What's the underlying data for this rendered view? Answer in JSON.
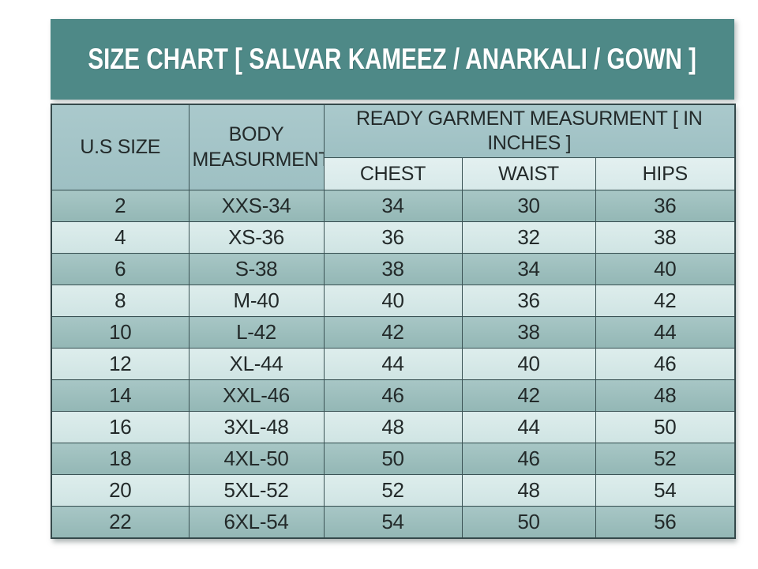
{
  "title": "SIZE CHART [ SALVAR KAMEEZ / ANARKALI / GOWN ]",
  "table_header": {
    "us_size": "U.S SIZE",
    "body_measurement": "BODY MEASURMENT",
    "ready_garment": "READY GARMENT MEASURMENT [ IN INCHES ]",
    "chest": "CHEST",
    "waist": "WAIST",
    "hips": "HIPS"
  },
  "chart_data": {
    "type": "table",
    "title": "SIZE CHART [ SALVAR KAMEEZ / ANARKALI / GOWN ]",
    "columns": [
      "U.S SIZE",
      "BODY MEASURMENT",
      "CHEST",
      "WAIST",
      "HIPS"
    ],
    "column_group": {
      "label": "READY GARMENT MEASURMENT [ IN INCHES ]",
      "columns": [
        "CHEST",
        "WAIST",
        "HIPS"
      ]
    },
    "rows": [
      [
        "2",
        "XXS-34",
        "34",
        "30",
        "36"
      ],
      [
        "4",
        "XS-36",
        "36",
        "32",
        "38"
      ],
      [
        "6",
        "S-38",
        "38",
        "34",
        "40"
      ],
      [
        "8",
        "M-40",
        "40",
        "36",
        "42"
      ],
      [
        "10",
        "L-42",
        "42",
        "38",
        "44"
      ],
      [
        "12",
        "XL-44",
        "44",
        "40",
        "46"
      ],
      [
        "14",
        "XXL-46",
        "46",
        "42",
        "48"
      ],
      [
        "16",
        "3XL-48",
        "48",
        "44",
        "50"
      ],
      [
        "18",
        "4XL-50",
        "50",
        "46",
        "52"
      ],
      [
        "20",
        "5XL-52",
        "52",
        "48",
        "54"
      ],
      [
        "22",
        "6XL-54",
        "54",
        "50",
        "56"
      ]
    ]
  },
  "colors": {
    "banner_teal": "#4e8987",
    "banner_text": "#ffffff",
    "header_cell": "#a4c4c7",
    "subheader_cell": "#ddecec",
    "row_dark": "#9dbfbd",
    "row_light": "#d6e8e7",
    "cell_border": "#3b5355",
    "cell_text": "#232a2a",
    "page_background": "#ffffff"
  }
}
